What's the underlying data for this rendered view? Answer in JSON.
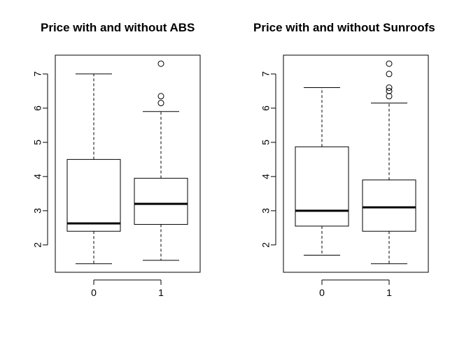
{
  "chart_data": [
    {
      "type": "boxplot",
      "title": "Price with and without ABS",
      "xlabel": "",
      "ylabel": "",
      "categories": [
        "0",
        "1"
      ],
      "yticks": [
        "2",
        "3",
        "4",
        "5",
        "6",
        "7"
      ],
      "ylim": [
        1.2,
        7.55
      ],
      "boxes": [
        {
          "category": "0",
          "whisker_low": 1.45,
          "q1": 2.4,
          "median": 2.63,
          "q3": 4.5,
          "whisker_high": 7.0,
          "outliers": []
        },
        {
          "category": "1",
          "whisker_low": 1.55,
          "q1": 2.6,
          "median": 3.2,
          "q3": 3.95,
          "whisker_high": 5.9,
          "outliers": [
            6.15,
            6.35,
            7.3
          ]
        }
      ],
      "grid": false
    },
    {
      "type": "boxplot",
      "title": "Price with and without Sunroofs",
      "xlabel": "",
      "ylabel": "",
      "categories": [
        "0",
        "1"
      ],
      "yticks": [
        "2",
        "3",
        "4",
        "5",
        "6",
        "7"
      ],
      "ylim": [
        1.2,
        7.55
      ],
      "boxes": [
        {
          "category": "0",
          "whisker_low": 1.7,
          "q1": 2.55,
          "median": 3.0,
          "q3": 4.87,
          "whisker_high": 6.6,
          "outliers": []
        },
        {
          "category": "1",
          "whisker_low": 1.45,
          "q1": 2.4,
          "median": 3.1,
          "q3": 3.9,
          "whisker_high": 6.15,
          "outliers": [
            6.35,
            6.5,
            6.6,
            7.0,
            7.3
          ]
        }
      ],
      "grid": false
    }
  ]
}
